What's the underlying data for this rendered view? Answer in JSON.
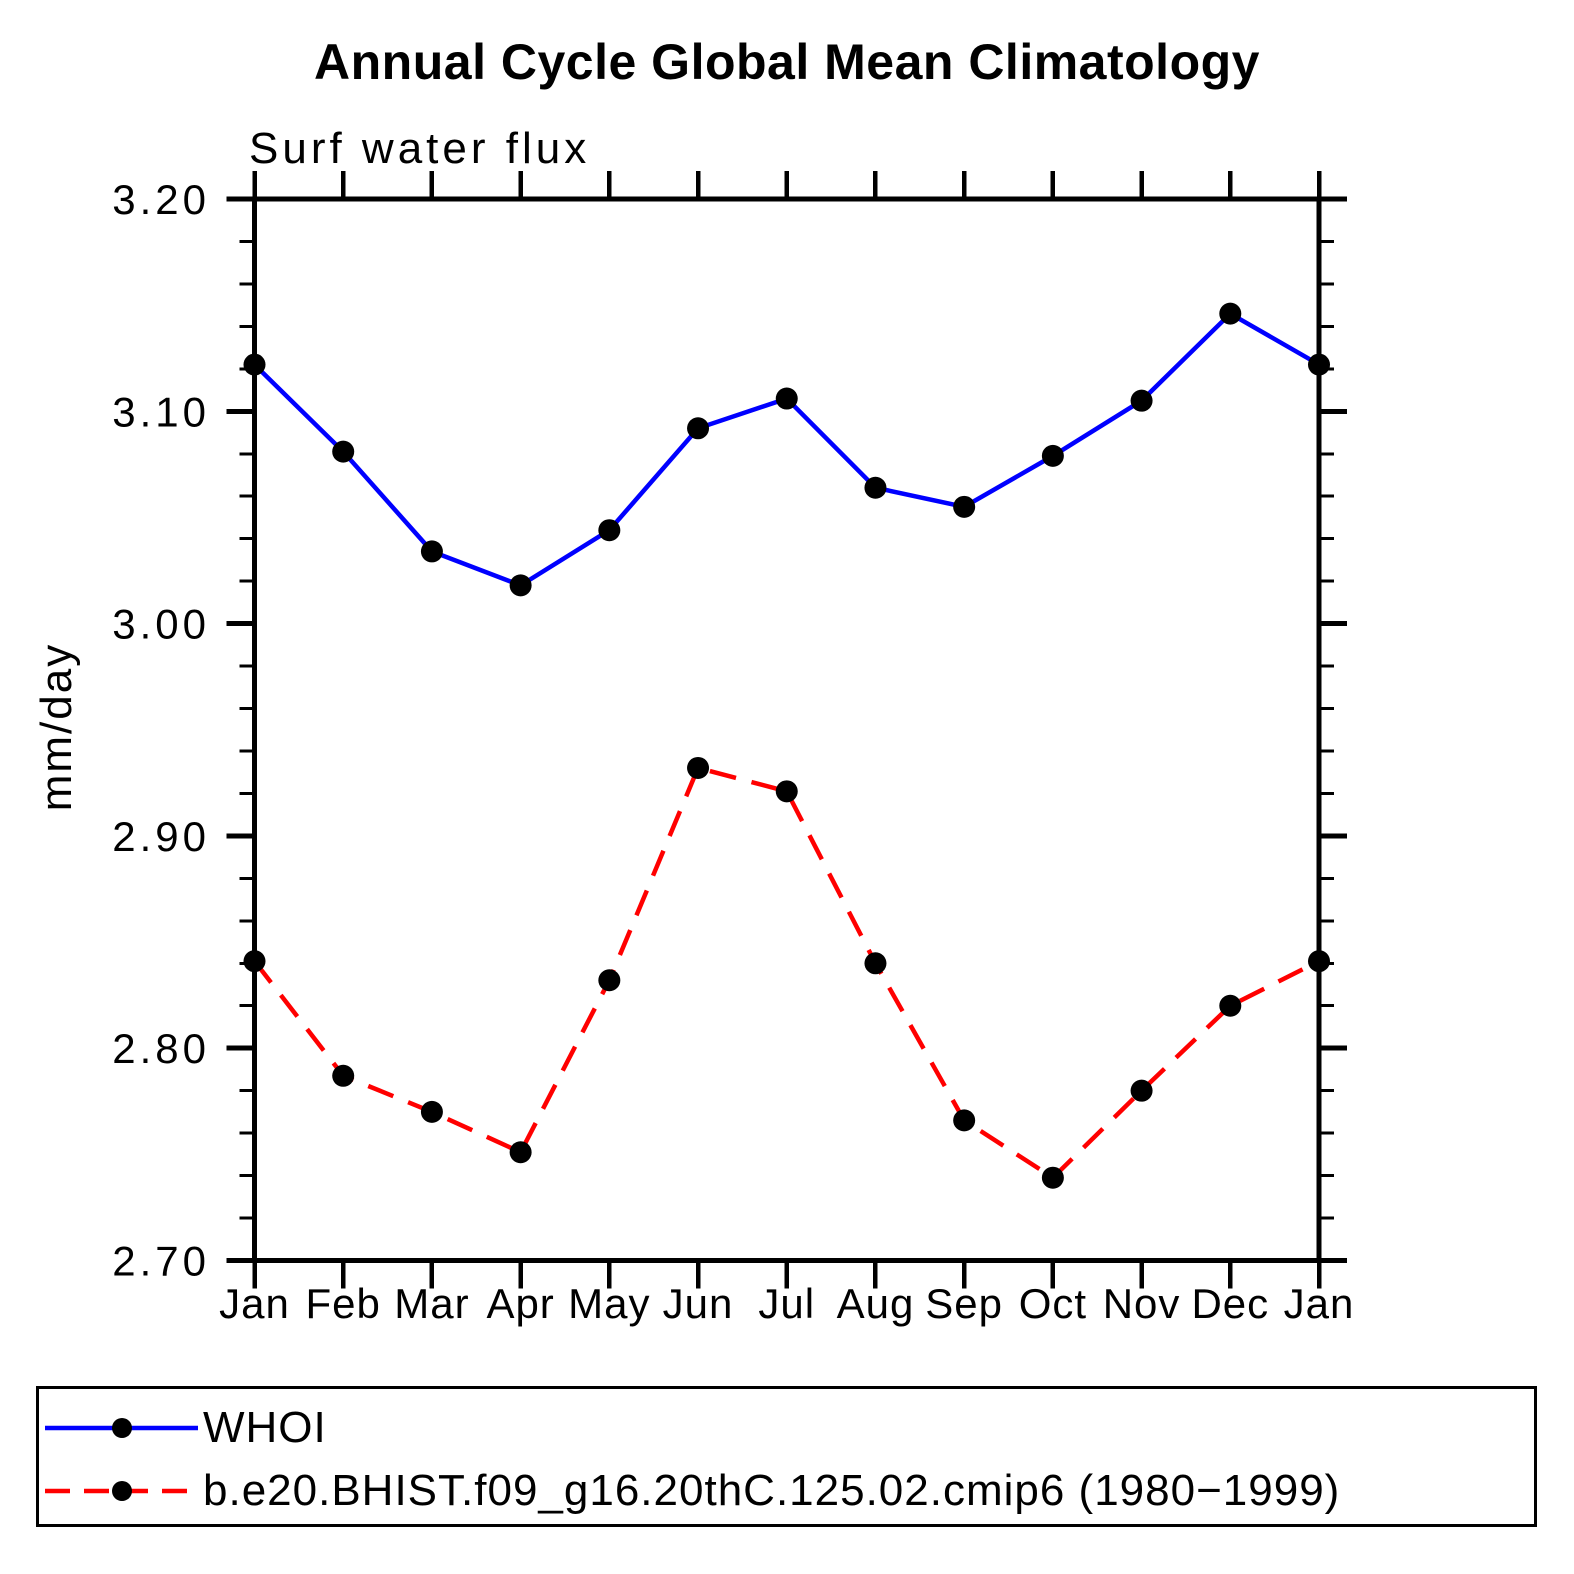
{
  "chart_data": {
    "type": "line",
    "title": "Annual Cycle Global Mean Climatology",
    "subtitle": "Surf water flux",
    "ylabel": "mm/day",
    "xlabel": "",
    "categories": [
      "Jan",
      "Feb",
      "Mar",
      "Apr",
      "May",
      "Jun",
      "Jul",
      "Aug",
      "Sep",
      "Oct",
      "Nov",
      "Dec",
      "Jan"
    ],
    "ylim": [
      2.7,
      3.2
    ],
    "ytick_major_step": 0.1,
    "ytick_minor_step": 0.02,
    "ytick_labels": [
      "3.20",
      "3.10",
      "3.00",
      "2.90",
      "2.80",
      "2.70"
    ],
    "grid": false,
    "legend_position": "bottom",
    "frame_color": "#000000",
    "marker": {
      "shape": "circle",
      "color": "#000000",
      "radius_px": 11
    },
    "series": [
      {
        "name": "WHOI",
        "color": "#0000ff",
        "line_style": "solid",
        "values": [
          3.122,
          3.081,
          3.034,
          3.018,
          3.044,
          3.092,
          3.106,
          3.064,
          3.055,
          3.079,
          3.105,
          3.146,
          3.122
        ]
      },
      {
        "name": "b.e20.BHIST.f09_g16.20thC.125.02.cmip6 (1980−1999)",
        "color": "#ff0000",
        "line_style": "dashed",
        "values": [
          2.841,
          2.787,
          2.77,
          2.751,
          2.832,
          2.932,
          2.921,
          2.84,
          2.766,
          2.739,
          2.78,
          2.82,
          2.841
        ]
      }
    ]
  }
}
